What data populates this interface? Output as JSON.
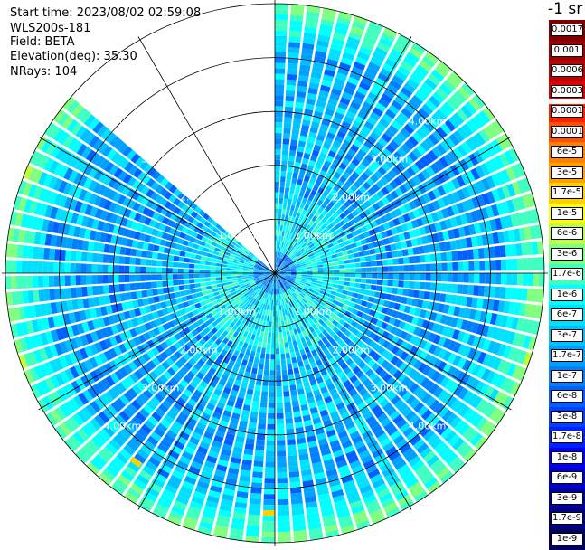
{
  "header": {
    "start_time": "Start time: 2023/08/02 02:59:08",
    "instrument": "WLS200s-181",
    "field": "Field: BETA",
    "elevation": "Elevation(deg): 35.30",
    "nrays": "NRays: 104"
  },
  "colorbar": {
    "units": "-1 sr",
    "labels": [
      "0.0017",
      "0.001",
      "0.0006",
      "0.0003",
      "0.00017",
      "0.0001",
      "6e-5",
      "3e-5",
      "1.7e-5",
      "1e-5",
      "6e-6",
      "3e-6",
      "1.7e-6",
      "1e-6",
      "6e-7",
      "3e-7",
      "1.7e-7",
      "1e-7",
      "6e-8",
      "3e-8",
      "1.7e-8",
      "1e-8",
      "6e-9",
      "3e-9",
      "1.7e-9",
      "1e-9"
    ],
    "colors": [
      "#800000",
      "#a00000",
      "#c00000",
      "#e00000",
      "#ff2000",
      "#ff5000",
      "#ff8000",
      "#ffa000",
      "#ffd000",
      "#ffff00",
      "#c0ff40",
      "#80ff80",
      "#40ffc0",
      "#00ffff",
      "#00e0ff",
      "#00c0ff",
      "#00a0ff",
      "#0080ff",
      "#0060ff",
      "#0040ff",
      "#0020ff",
      "#0000ff",
      "#0000d0",
      "#0000a0",
      "#000080",
      "#000060"
    ]
  },
  "chart_data": {
    "type": "heatmap",
    "projection": "polar",
    "field": "BETA",
    "elevation_deg": 35.3,
    "nrays": 104,
    "range_unit": "km",
    "range_max_km": 5.0,
    "range_rings_km": [
      1.0,
      2.0,
      3.0,
      4.0,
      5.0
    ],
    "range_ring_labels": [
      "1.00km",
      "2.00km",
      "3.00km",
      "4.00km"
    ],
    "scan_gap_azimuth_deg": [
      -50,
      0
    ],
    "typical_value_range": [
      "1e-8",
      "1e-6"
    ],
    "colorscale": "jet (log)"
  }
}
